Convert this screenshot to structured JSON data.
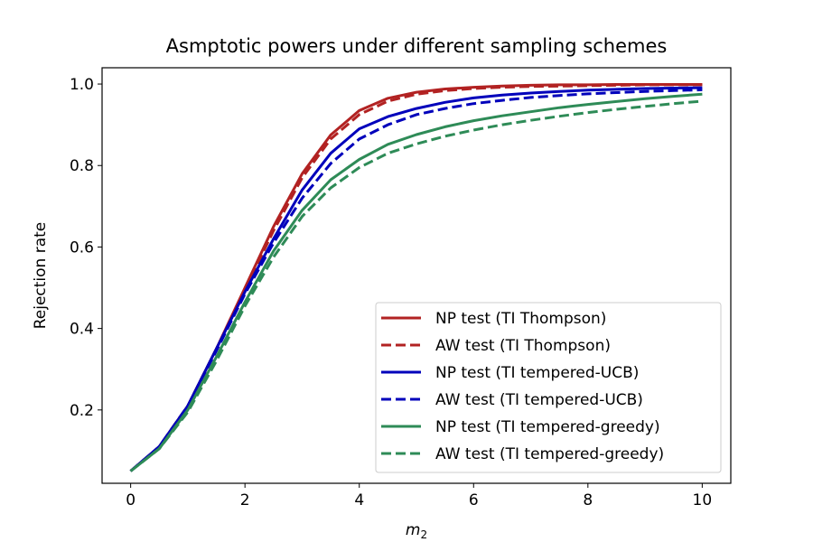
{
  "chart_data": {
    "type": "line",
    "title": "Asmptotic powers under different sampling schemes",
    "xlabel_main": "m",
    "xlabel_sub": "2",
    "ylabel": "Rejection rate",
    "xlim": [
      -0.5,
      10.5
    ],
    "ylim": [
      0.02,
      1.04
    ],
    "xticks": [
      0,
      2,
      4,
      6,
      8,
      10
    ],
    "xtick_labels": [
      "0",
      "2",
      "4",
      "6",
      "8",
      "10"
    ],
    "yticks": [
      0.2,
      0.4,
      0.6,
      0.8,
      1.0
    ],
    "ytick_labels": [
      "0.2",
      "0.4",
      "0.6",
      "0.8",
      "1.0"
    ],
    "grid": false,
    "legend_position": "lower-right",
    "x": [
      0,
      0.5,
      1,
      1.5,
      2,
      2.5,
      3,
      3.5,
      4,
      4.5,
      5,
      5.5,
      6,
      6.5,
      7,
      7.5,
      8,
      8.5,
      9,
      9.5,
      10
    ],
    "series": [
      {
        "name": "NP test (TI Thompson)",
        "color": "#b22222",
        "dash": false,
        "values": [
          0.05,
          0.11,
          0.21,
          0.35,
          0.5,
          0.65,
          0.78,
          0.875,
          0.935,
          0.965,
          0.98,
          0.988,
          0.992,
          0.995,
          0.997,
          0.998,
          0.998,
          0.999,
          0.999,
          0.999,
          0.999
        ]
      },
      {
        "name": "AW test (TI Thompson)",
        "color": "#b22222",
        "dash": true,
        "values": [
          0.05,
          0.11,
          0.21,
          0.35,
          0.495,
          0.64,
          0.77,
          0.865,
          0.925,
          0.958,
          0.975,
          0.984,
          0.989,
          0.992,
          0.994,
          0.995,
          0.996,
          0.997,
          0.998,
          0.998,
          0.998
        ]
      },
      {
        "name": "NP test (TI tempered-UCB)",
        "color": "#0000bb",
        "dash": false,
        "values": [
          0.05,
          0.11,
          0.21,
          0.35,
          0.49,
          0.62,
          0.74,
          0.83,
          0.89,
          0.92,
          0.94,
          0.955,
          0.966,
          0.973,
          0.978,
          0.982,
          0.985,
          0.987,
          0.989,
          0.99,
          0.991
        ]
      },
      {
        "name": "AW test (TI tempered-UCB)",
        "color": "#0000bb",
        "dash": true,
        "values": [
          0.05,
          0.11,
          0.21,
          0.345,
          0.485,
          0.61,
          0.72,
          0.805,
          0.865,
          0.9,
          0.925,
          0.94,
          0.952,
          0.96,
          0.967,
          0.972,
          0.976,
          0.979,
          0.982,
          0.984,
          0.986
        ]
      },
      {
        "name": "NP test (TI tempered-greedy)",
        "color": "#2e8b57",
        "dash": false,
        "values": [
          0.05,
          0.105,
          0.2,
          0.33,
          0.465,
          0.59,
          0.69,
          0.765,
          0.815,
          0.852,
          0.876,
          0.895,
          0.91,
          0.922,
          0.932,
          0.942,
          0.95,
          0.957,
          0.964,
          0.97,
          0.975
        ]
      },
      {
        "name": "AW test (TI tempered-greedy)",
        "color": "#2e8b57",
        "dash": true,
        "values": [
          0.05,
          0.105,
          0.195,
          0.32,
          0.455,
          0.575,
          0.675,
          0.745,
          0.795,
          0.83,
          0.853,
          0.872,
          0.887,
          0.9,
          0.911,
          0.921,
          0.93,
          0.938,
          0.945,
          0.952,
          0.958
        ]
      }
    ]
  }
}
